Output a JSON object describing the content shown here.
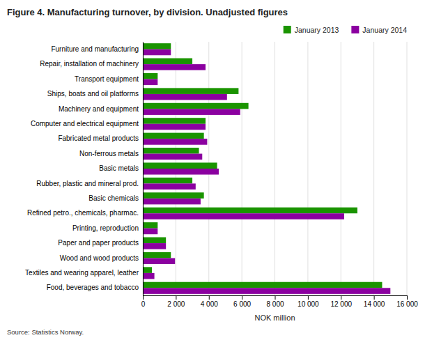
{
  "chart_data": {
    "type": "bar",
    "orientation": "horizontal",
    "title": "Figure 4. Manufacturing turnover, by division. Unadjusted figures",
    "categories": [
      "Food, beverages and tobacco",
      "Textiles and wearing apparel, leather",
      "Wood and wood products",
      "Paper and paper products",
      "Printing, reproduction",
      "Refined petro., chemicals, pharmac.",
      "Basic chemicals",
      "Rubber, plastic and mineral prod.",
      "Basic metals",
      "Non-ferrous metals",
      "Fabricated metal products",
      "Computer and electrical equipment",
      "Machinery and equipment",
      "Ships, boats and oil platforms",
      "Transport equipment",
      "Repair, installation of machinery",
      "Furniture and manufacturing"
    ],
    "series": [
      {
        "name": "January 2013",
        "color": "#1a9400",
        "values": [
          14500,
          550,
          1700,
          1400,
          900,
          13000,
          3700,
          3000,
          4500,
          3400,
          3700,
          3800,
          6400,
          5800,
          900,
          3000,
          1700
        ]
      },
      {
        "name": "January 2014",
        "color": "#8b00a0",
        "values": [
          15000,
          700,
          1950,
          1400,
          900,
          12200,
          3500,
          3200,
          4600,
          3600,
          3900,
          3800,
          5900,
          5100,
          900,
          3800,
          1700
        ]
      }
    ],
    "xlabel": "NOK million",
    "xlim": [
      0,
      16000
    ],
    "xticks": [
      0,
      {
        "value": 2000,
        "label": "2 000"
      },
      {
        "value": 4000,
        "label": "4 000"
      },
      {
        "value": 6000,
        "label": "6 000"
      },
      {
        "value": 8000,
        "label": "8 000"
      },
      {
        "value": 10000,
        "label": "10 000"
      },
      {
        "value": 12000,
        "label": "12 000"
      },
      {
        "value": 14000,
        "label": "14 000"
      },
      {
        "value": 16000,
        "label": "16 000"
      }
    ],
    "grid": true,
    "legend": "upper right",
    "annotations": [
      "Source: Statistics Norway."
    ]
  }
}
